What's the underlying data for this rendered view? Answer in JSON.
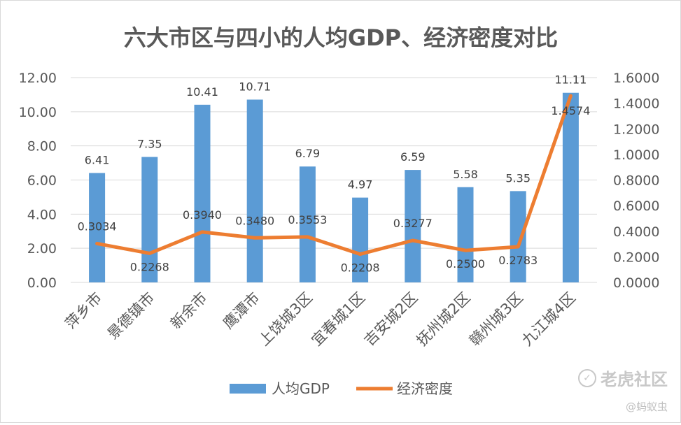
{
  "chart_data": {
    "type": "bar",
    "title": "六大市区与四小的人均GDP、经济密度对比",
    "categories": [
      "萍乡市",
      "景德镇市",
      "新余市",
      "鹰潭市",
      "上饶城3区",
      "宜春城1区",
      "吉安城2区",
      "抚州城2区",
      "赣州城3区",
      "九江城4区"
    ],
    "series": [
      {
        "name": "人均GDP",
        "kind": "bar",
        "axis": "left",
        "color": "#5b9bd5",
        "values": [
          6.41,
          7.35,
          10.41,
          10.71,
          6.79,
          4.97,
          6.59,
          5.58,
          5.35,
          11.11
        ],
        "labels": [
          "6.41",
          "7.35",
          "10.41",
          "10.71",
          "6.79",
          "4.97",
          "6.59",
          "5.58",
          "5.35",
          "11.11"
        ]
      },
      {
        "name": "经济密度",
        "kind": "line",
        "axis": "right",
        "color": "#ed7d31",
        "values": [
          0.3034,
          0.2268,
          0.394,
          0.348,
          0.3553,
          0.2208,
          0.3277,
          0.25,
          0.2783,
          1.4574
        ],
        "labels": [
          "0.3034",
          "0.2268",
          "0.3940",
          "0.3480",
          "0.3553",
          "0.2208",
          "0.3277",
          "0.2500",
          "0.2783",
          "1.4574"
        ]
      }
    ],
    "y_left": {
      "range": [
        0,
        12
      ],
      "ticks": [
        0,
        2,
        4,
        6,
        8,
        10,
        12
      ],
      "tick_labels": [
        "0.00",
        "2.00",
        "4.00",
        "6.00",
        "8.00",
        "10.00",
        "12.00"
      ]
    },
    "y_right": {
      "range": [
        0,
        1.6
      ],
      "ticks": [
        0,
        0.2,
        0.4,
        0.6,
        0.8,
        1.0,
        1.2,
        1.4,
        1.6
      ],
      "tick_labels": [
        "0.0000",
        "0.2000",
        "0.4000",
        "0.6000",
        "0.8000",
        "1.0000",
        "1.2000",
        "1.4000",
        "1.6000"
      ]
    },
    "grid": true,
    "legend": "bottom"
  },
  "watermark": {
    "icon": "chat-bubble-icon",
    "brand": "老虎社区",
    "author": "@蚂蚁虫"
  }
}
